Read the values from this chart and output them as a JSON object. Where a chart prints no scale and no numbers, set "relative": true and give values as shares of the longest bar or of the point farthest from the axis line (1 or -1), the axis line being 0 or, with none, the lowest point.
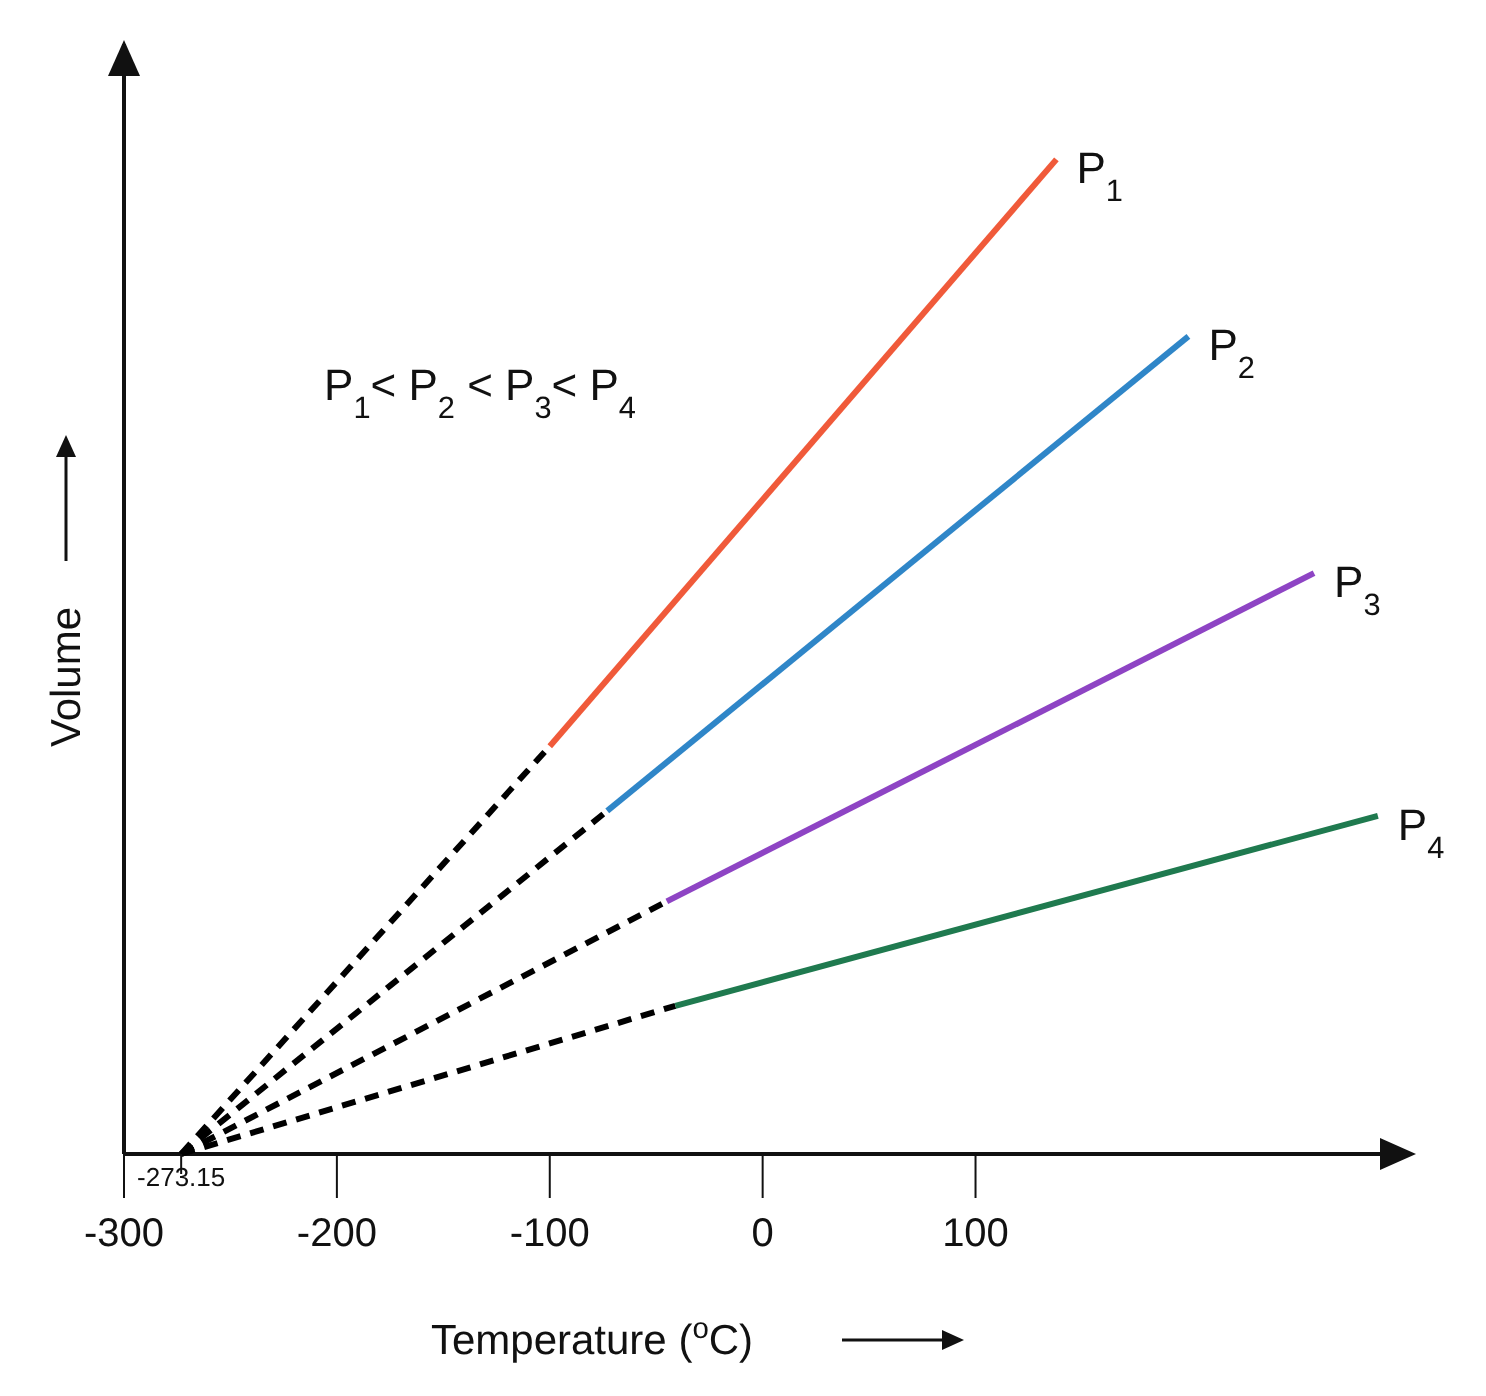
{
  "chart_data": {
    "type": "line",
    "relative": true,
    "xlabel": "Temperature ($^{o}$C)",
    "ylabel": "Volume",
    "xlim": [
      -300,
      290
    ],
    "xticks": [
      -300,
      -200,
      -100,
      0,
      100
    ],
    "annotations": [
      "P$_{1}$< P$_{2}$ <  P$_{3}$< P$_{4}$",
      {
        "text": "-273.15",
        "x": -273.15,
        "y": 0
      }
    ],
    "series": [
      {
        "type": "line",
        "line_style": "dashed",
        "color": "#000000",
        "x": [
          -273.15,
          -100
        ],
        "values": [
          0,
          0.41
        ]
      },
      {
        "name": "P$_{1}$",
        "color": "#f05a3a",
        "x": [
          -100,
          138
        ],
        "values": [
          0.41,
          1
        ]
      },
      {
        "type": "line",
        "line_style": "dashed",
        "color": "#000000",
        "x": [
          -273.15,
          -73
        ],
        "values": [
          0,
          0.345
        ]
      },
      {
        "name": "P$_{2}$",
        "color": "#2f86c8",
        "x": [
          -73,
          200
        ],
        "values": [
          0.345,
          0.822
        ]
      },
      {
        "type": "line",
        "line_style": "dashed",
        "color": "#000000",
        "x": [
          -273.15,
          -45
        ],
        "values": [
          0,
          0.254
        ]
      },
      {
        "name": "P$_{3}$",
        "color": "#8e44c4",
        "x": [
          -45,
          259
        ],
        "values": [
          0.254,
          0.584
        ]
      },
      {
        "type": "line",
        "line_style": "dashed",
        "color": "#000000",
        "x": [
          -273.15,
          -41
        ],
        "values": [
          0,
          0.149
        ]
      },
      {
        "name": "P$_{4}$",
        "color": "#1f7a4f",
        "x": [
          -41,
          289
        ],
        "values": [
          0.149,
          0.34
        ]
      }
    ]
  }
}
